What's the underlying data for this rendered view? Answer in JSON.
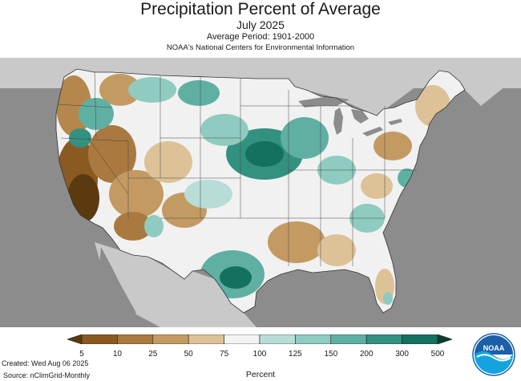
{
  "header": {
    "title": "Precipitation Percent of Average",
    "month": "July 2025",
    "period": "Average Period: 1901-2000",
    "agency": "NOAA's National Centers for Environmental Information"
  },
  "map": {
    "region": "Contiguous United States",
    "background_color": "#8c8c8c",
    "outside_land_color": "#c9c9c9",
    "water_color": "#8c8c8c",
    "pattern": "Above-average precipitation (teal) over the Midwest, Great Lakes, north-central plains and central Texas; below-average (brown) across the West Coast, Southwest, Great Basin and parts of the Southeast and Northeast."
  },
  "legend": {
    "unit_label": "Percent",
    "ticks": [
      "5",
      "10",
      "25",
      "50",
      "75",
      "100",
      "125",
      "150",
      "200",
      "300",
      "500"
    ],
    "colors": [
      "#5c3a10",
      "#8a5a22",
      "#a9793f",
      "#c49a63",
      "#dcc296",
      "#f3f3f3",
      "#b8ddd6",
      "#8fcbc0",
      "#5fb0a2",
      "#33917f",
      "#14705f",
      "#073f33"
    ]
  },
  "footer": {
    "created": "Created: Wed Aug 06 2025",
    "source": "Source: nClimGrid-Monthly"
  },
  "logo": {
    "text": "NOAA",
    "primary_color": "#1b5fa8",
    "secondary_color": "#12a3e0"
  }
}
